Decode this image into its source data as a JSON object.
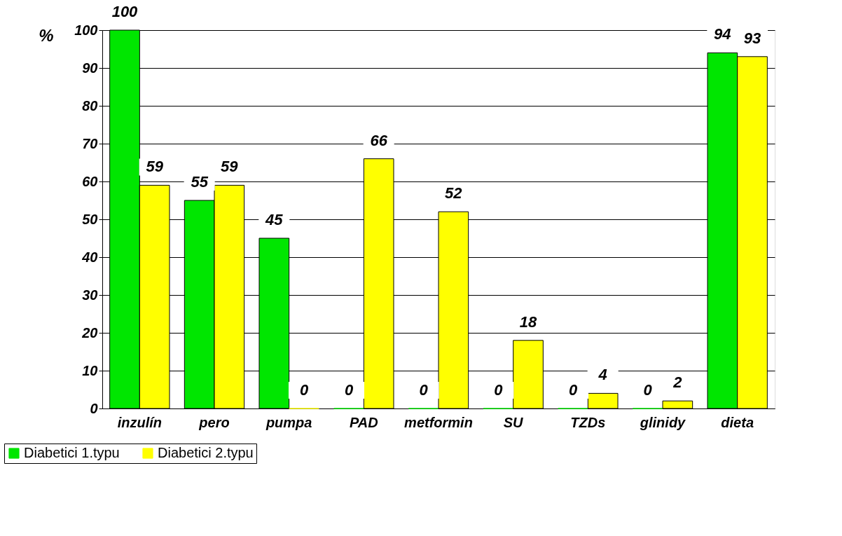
{
  "chart_data": {
    "type": "bar",
    "ylabel": "%",
    "categories": [
      "inzulín",
      "pero",
      "pumpa",
      "PAD",
      "metformin",
      "SU",
      "TZDs",
      "glinidy",
      "dieta"
    ],
    "series": [
      {
        "name": "Diabetici 1.typu",
        "color": "#00e600",
        "values": [
          100,
          55,
          45,
          0,
          0,
          0,
          0,
          0,
          94
        ]
      },
      {
        "name": "Diabetici 2.typu",
        "color": "#ffff00",
        "values": [
          59,
          59,
          0,
          66,
          52,
          18,
          4,
          2,
          93
        ]
      }
    ],
    "ylim": [
      0,
      100
    ],
    "yticks": [
      0,
      10,
      20,
      30,
      40,
      50,
      60,
      70,
      80,
      90,
      100
    ],
    "grid": "y",
    "legend": "bottom left",
    "data_labels": true
  }
}
